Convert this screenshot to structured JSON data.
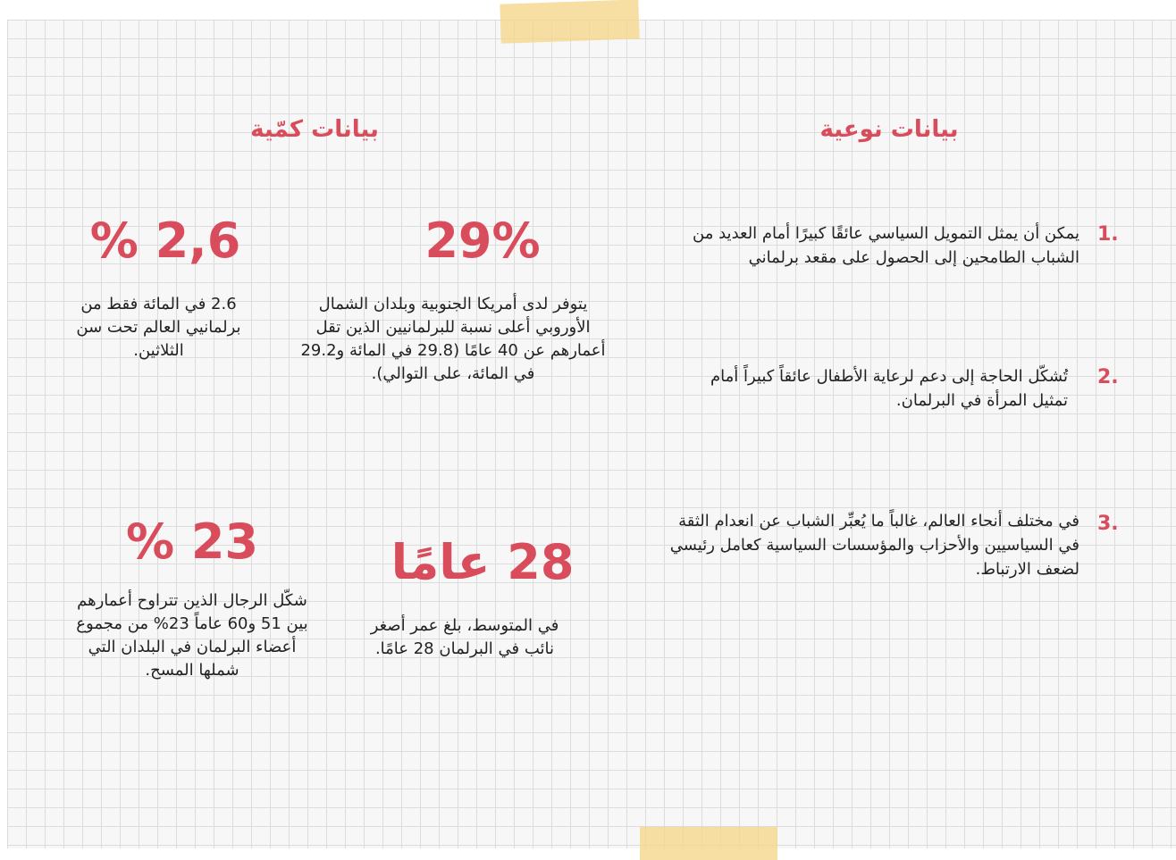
{
  "qualitative": {
    "title": "بيانات نوعية",
    "items": [
      {
        "number": "1.",
        "text": "يمكن أن يمثل التمويل السياسي عائقًا كبيرًا أمام العديد من الشباب الطامحين إلى الحصول على مقعد برلماني"
      },
      {
        "number": "2.",
        "text": "تُشكّل الحاجة إلى دعم لرعاية الأطفال عائقاً كبيراً أمام تمثيل المرأة في البرلمان."
      },
      {
        "number": "3.",
        "text": "في مختلف أنحاء العالم، غالباً ما يُعبِّر الشباب عن انعدام الثقة في السياسيين والأحزاب والمؤسسات السياسية كعامل رئيسي لضعف الارتباط."
      }
    ]
  },
  "quantitative": {
    "title": "بيانات كمّية",
    "stats": [
      {
        "figure": "29%",
        "text": "يتوفر لدى أمريكا الجنوبية وبلدان الشمال الأوروبي أعلى نسبة للبرلمانيين الذين تقل أعمارهم عن 40 عامًا (29.8 في المائة و29.2 في المائة، على التوالي)."
      },
      {
        "figure": "2,6 %",
        "text": "2.6 في المائة فقط من برلمانيي العالم تحت سن الثلاثين."
      },
      {
        "figure": "23 %",
        "text": "شكّل الرجال الذين تتراوح أعمارهم بين 51 و60 عاماً 23% من مجموع أعضاء البرلمان في البلدان التي شملها المسح."
      },
      {
        "figure": "28 عامًا",
        "text": "في المتوسط، بلغ عمر أصغر نائب في البرلمان 28 عامًا."
      }
    ]
  }
}
